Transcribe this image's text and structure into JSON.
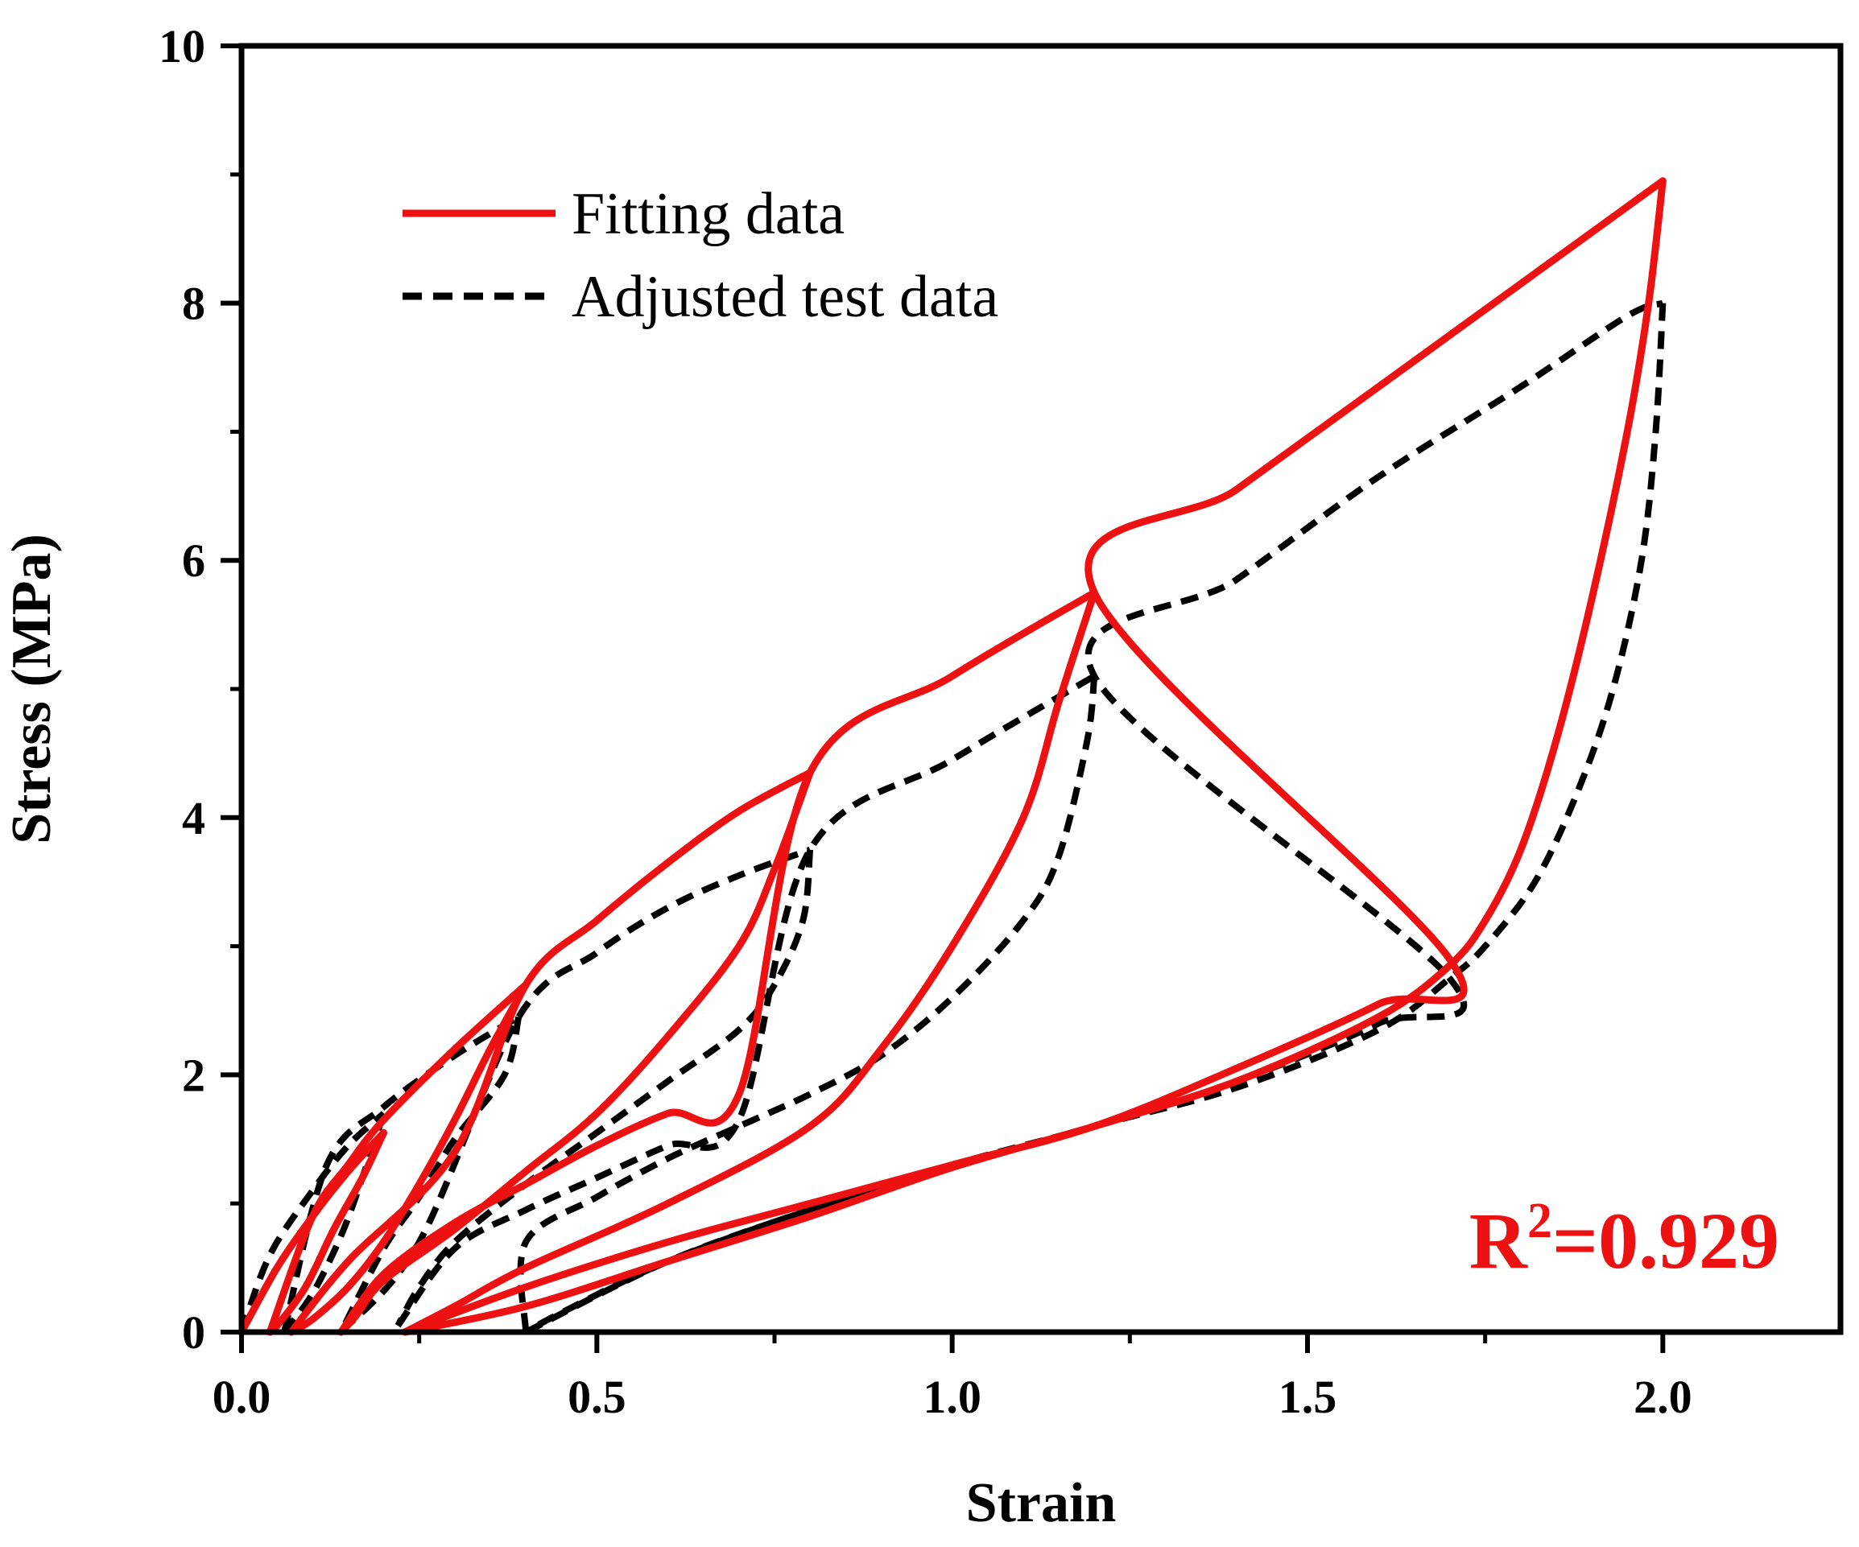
{
  "chart_data": {
    "type": "line",
    "title": "",
    "xlabel": "Strain",
    "ylabel": "Stress (MPa)",
    "xlim": [
      0.0,
      2.25
    ],
    "ylim": [
      0,
      10
    ],
    "x_ticks": [
      0.0,
      0.5,
      1.0,
      1.5,
      2.0
    ],
    "x_tick_labels": [
      "0.0",
      "0.5",
      "1.0",
      "1.5",
      "2.0"
    ],
    "y_ticks": [
      0,
      2,
      4,
      6,
      8,
      10
    ],
    "y_tick_labels": [
      "0",
      "2",
      "4",
      "6",
      "8",
      "10"
    ],
    "grid": false,
    "legend_position": "top-left",
    "annotation": {
      "prefix": "R",
      "superscript": "2",
      "suffix": "=0.929",
      "color": "#ee1111"
    },
    "series": [
      {
        "name": "Fitting data",
        "color": "#ee1111",
        "style": "solid",
        "cycles": [
          {
            "peak_strain": 0.2,
            "loading": [
              [
                0.0,
                0.0
              ],
              [
                0.05,
                0.5
              ],
              [
                0.1,
                0.9
              ],
              [
                0.15,
                1.25
              ],
              [
                0.2,
                1.55
              ]
            ],
            "unloading": [
              [
                0.2,
                1.55
              ],
              [
                0.17,
                1.2
              ],
              [
                0.13,
                0.8
              ],
              [
                0.09,
                0.35
              ],
              [
                0.05,
                0.05
              ],
              [
                0.04,
                0.0
              ]
            ]
          },
          {
            "peak_strain": 0.4,
            "loading": [
              [
                0.04,
                0.0
              ],
              [
                0.1,
                0.9
              ],
              [
                0.15,
                1.3
              ],
              [
                0.2,
                1.65
              ],
              [
                0.3,
                2.2
              ],
              [
                0.4,
                2.7
              ]
            ],
            "unloading": [
              [
                0.4,
                2.7
              ],
              [
                0.35,
                2.2
              ],
              [
                0.3,
                1.65
              ],
              [
                0.25,
                1.15
              ],
              [
                0.2,
                0.7
              ],
              [
                0.15,
                0.35
              ],
              [
                0.1,
                0.1
              ],
              [
                0.07,
                0.0
              ]
            ]
          },
          {
            "peak_strain": 0.8,
            "loading": [
              [
                0.07,
                0.0
              ],
              [
                0.15,
                0.55
              ],
              [
                0.3,
                1.4
              ],
              [
                0.4,
                2.7
              ],
              [
                0.5,
                3.2
              ],
              [
                0.6,
                3.65
              ],
              [
                0.7,
                4.05
              ],
              [
                0.8,
                4.35
              ]
            ],
            "unloading": [
              [
                0.8,
                4.35
              ],
              [
                0.75,
                3.6
              ],
              [
                0.7,
                3.0
              ],
              [
                0.6,
                2.3
              ],
              [
                0.5,
                1.7
              ],
              [
                0.4,
                1.25
              ],
              [
                0.3,
                0.8
              ],
              [
                0.2,
                0.4
              ],
              [
                0.16,
                0.12
              ],
              [
                0.14,
                0.0
              ]
            ]
          },
          {
            "peak_strain": 1.2,
            "loading": [
              [
                0.14,
                0.0
              ],
              [
                0.2,
                0.45
              ],
              [
                0.3,
                0.85
              ],
              [
                0.4,
                1.15
              ],
              [
                0.5,
                1.45
              ],
              [
                0.6,
                1.7
              ],
              [
                0.7,
                1.85
              ],
              [
                0.8,
                4.35
              ],
              [
                1.0,
                5.1
              ],
              [
                1.2,
                5.75
              ]
            ],
            "unloading": [
              [
                1.2,
                5.75
              ],
              [
                1.15,
                4.9
              ],
              [
                1.1,
                4.0
              ],
              [
                1.0,
                3.0
              ],
              [
                0.9,
                2.2
              ],
              [
                0.8,
                1.6
              ],
              [
                0.6,
                1.0
              ],
              [
                0.4,
                0.5
              ],
              [
                0.3,
                0.2
              ],
              [
                0.23,
                0.0
              ]
            ]
          },
          {
            "peak_strain": 2.0,
            "loading": [
              [
                0.23,
                0.0
              ],
              [
                0.4,
                0.35
              ],
              [
                0.6,
                0.7
              ],
              [
                0.8,
                1.0
              ],
              [
                1.0,
                1.3
              ],
              [
                1.2,
                1.6
              ],
              [
                1.4,
                2.05
              ],
              [
                1.6,
                2.55
              ],
              [
                1.7,
                2.9
              ],
              [
                1.2,
                5.75
              ],
              [
                1.4,
                6.55
              ],
              [
                1.6,
                7.35
              ],
              [
                1.8,
                8.15
              ],
              [
                2.0,
                8.95
              ]
            ],
            "unloading": [
              [
                2.0,
                8.95
              ],
              [
                1.98,
                8.0
              ],
              [
                1.95,
                7.0
              ],
              [
                1.9,
                5.7
              ],
              [
                1.85,
                4.6
              ],
              [
                1.8,
                3.75
              ],
              [
                1.75,
                3.2
              ],
              [
                1.7,
                2.85
              ],
              [
                1.6,
                2.45
              ],
              [
                1.4,
                1.95
              ],
              [
                1.2,
                1.6
              ],
              [
                1.0,
                1.28
              ],
              [
                0.8,
                0.9
              ],
              [
                0.6,
                0.55
              ],
              [
                0.4,
                0.2
              ],
              [
                0.23,
                0.0
              ]
            ]
          }
        ]
      },
      {
        "name": "Adjusted test data",
        "color": "#000000",
        "style": "dashed",
        "cycles": [
          {
            "peak_strain": 0.2,
            "loading": [
              [
                0.0,
                0.0
              ],
              [
                0.04,
                0.6
              ],
              [
                0.1,
                1.1
              ],
              [
                0.15,
                1.45
              ],
              [
                0.2,
                1.7
              ]
            ],
            "unloading": [
              [
                0.2,
                1.7
              ],
              [
                0.17,
                1.2
              ],
              [
                0.14,
                0.75
              ],
              [
                0.1,
                0.3
              ],
              [
                0.06,
                0.0
              ]
            ]
          },
          {
            "peak_strain": 0.4,
            "loading": [
              [
                0.06,
                0.0
              ],
              [
                0.12,
                1.3
              ],
              [
                0.2,
                1.75
              ],
              [
                0.3,
                2.15
              ],
              [
                0.39,
                2.45
              ]
            ],
            "unloading": [
              [
                0.39,
                2.45
              ],
              [
                0.37,
                2.0
              ],
              [
                0.3,
                1.5
              ],
              [
                0.25,
                1.05
              ],
              [
                0.2,
                0.65
              ],
              [
                0.14,
                0.0
              ]
            ]
          },
          {
            "peak_strain": 0.8,
            "loading": [
              [
                0.14,
                0.0
              ],
              [
                0.25,
                0.7
              ],
              [
                0.39,
                2.45
              ],
              [
                0.5,
                2.95
              ],
              [
                0.6,
                3.3
              ],
              [
                0.7,
                3.55
              ],
              [
                0.8,
                3.75
              ]
            ],
            "unloading": [
              [
                0.8,
                3.75
              ],
              [
                0.79,
                3.2
              ],
              [
                0.75,
                2.7
              ],
              [
                0.7,
                2.35
              ],
              [
                0.6,
                1.95
              ],
              [
                0.5,
                1.55
              ],
              [
                0.4,
                1.15
              ],
              [
                0.3,
                0.7
              ],
              [
                0.25,
                0.35
              ],
              [
                0.22,
                0.05
              ]
            ]
          },
          {
            "peak_strain": 1.2,
            "loading": [
              [
                0.22,
                0.05
              ],
              [
                0.3,
                0.65
              ],
              [
                0.4,
                0.95
              ],
              [
                0.5,
                1.2
              ],
              [
                0.6,
                1.45
              ],
              [
                0.7,
                1.65
              ],
              [
                0.8,
                3.75
              ],
              [
                1.0,
                4.45
              ],
              [
                1.2,
                5.1
              ]
            ],
            "unloading": [
              [
                1.2,
                5.1
              ],
              [
                1.19,
                4.6
              ],
              [
                1.15,
                3.7
              ],
              [
                1.1,
                3.2
              ],
              [
                1.0,
                2.6
              ],
              [
                0.9,
                2.15
              ],
              [
                0.8,
                1.85
              ],
              [
                0.7,
                1.6
              ],
              [
                0.6,
                1.35
              ],
              [
                0.5,
                1.05
              ],
              [
                0.4,
                0.7
              ],
              [
                0.4,
                0.0
              ]
            ]
          },
          {
            "peak_strain": 2.0,
            "loading": [
              [
                0.4,
                0.0
              ],
              [
                0.6,
                0.55
              ],
              [
                0.8,
                0.95
              ],
              [
                1.0,
                1.3
              ],
              [
                1.2,
                1.6
              ],
              [
                1.4,
                1.95
              ],
              [
                1.6,
                2.4
              ],
              [
                1.7,
                2.75
              ],
              [
                1.2,
                5.1
              ],
              [
                1.4,
                5.85
              ],
              [
                1.6,
                6.65
              ],
              [
                1.8,
                7.35
              ],
              [
                1.95,
                7.9
              ],
              [
                2.0,
                8.0
              ]
            ],
            "unloading": [
              [
                2.0,
                8.0
              ],
              [
                1.99,
                7.0
              ],
              [
                1.97,
                6.0
              ],
              [
                1.93,
                5.0
              ],
              [
                1.88,
                4.2
              ],
              [
                1.82,
                3.5
              ],
              [
                1.75,
                3.0
              ],
              [
                1.7,
                2.75
              ],
              [
                1.6,
                2.35
              ],
              [
                1.4,
                1.9
              ],
              [
                1.2,
                1.6
              ],
              [
                1.0,
                1.28
              ],
              [
                0.8,
                0.95
              ],
              [
                0.6,
                0.55
              ],
              [
                0.45,
                0.15
              ],
              [
                0.4,
                0.0
              ]
            ]
          }
        ]
      }
    ]
  }
}
